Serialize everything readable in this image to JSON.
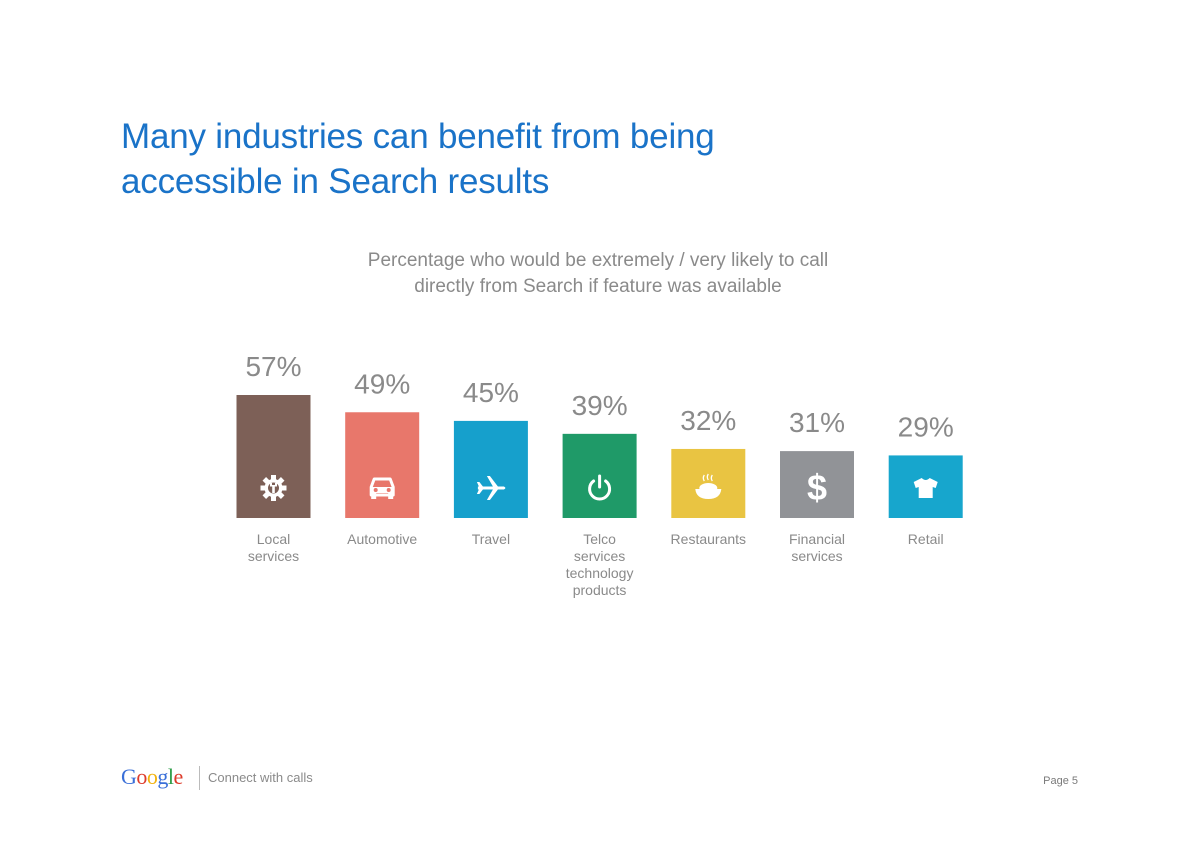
{
  "page": {
    "title_line1": "Many industries can benefit from being",
    "title_line2": "accessible in Search results",
    "footer_text": "Connect with calls",
    "page_number": "Page 5",
    "logo_text": "Google"
  },
  "chart_data": {
    "type": "bar",
    "subtitle_line1": "Percentage who would be extremely / very likely to call",
    "subtitle_line2": "directly from Search if feature was available",
    "categories": [
      {
        "label": [
          "Local",
          "services"
        ],
        "value": 57,
        "display": "57%",
        "color": "#7d6057",
        "icon": "gear-wrench-icon"
      },
      {
        "label": [
          "Automotive"
        ],
        "value": 49,
        "display": "49%",
        "color": "#e8776b",
        "icon": "car-icon"
      },
      {
        "label": [
          "Travel"
        ],
        "value": 45,
        "display": "45%",
        "color": "#16a0cc",
        "icon": "airplane-icon"
      },
      {
        "label": [
          "Telco",
          "services",
          "technology",
          "products"
        ],
        "value": 39,
        "display": "39%",
        "color": "#1f9a68",
        "icon": "power-icon"
      },
      {
        "label": [
          "Restaurants"
        ],
        "value": 32,
        "display": "32%",
        "color": "#e9c442",
        "icon": "food-bowl-icon"
      },
      {
        "label": [
          "Financial",
          "services"
        ],
        "value": 31,
        "display": "31%",
        "color": "#919397",
        "icon": "dollar-icon"
      },
      {
        "label": [
          "Retail"
        ],
        "value": 29,
        "display": "29%",
        "color": "#17a6cd",
        "icon": "tshirt-icon"
      }
    ],
    "value_label_color": "#8a8a8a",
    "category_label_color": "#8a8a8a"
  }
}
